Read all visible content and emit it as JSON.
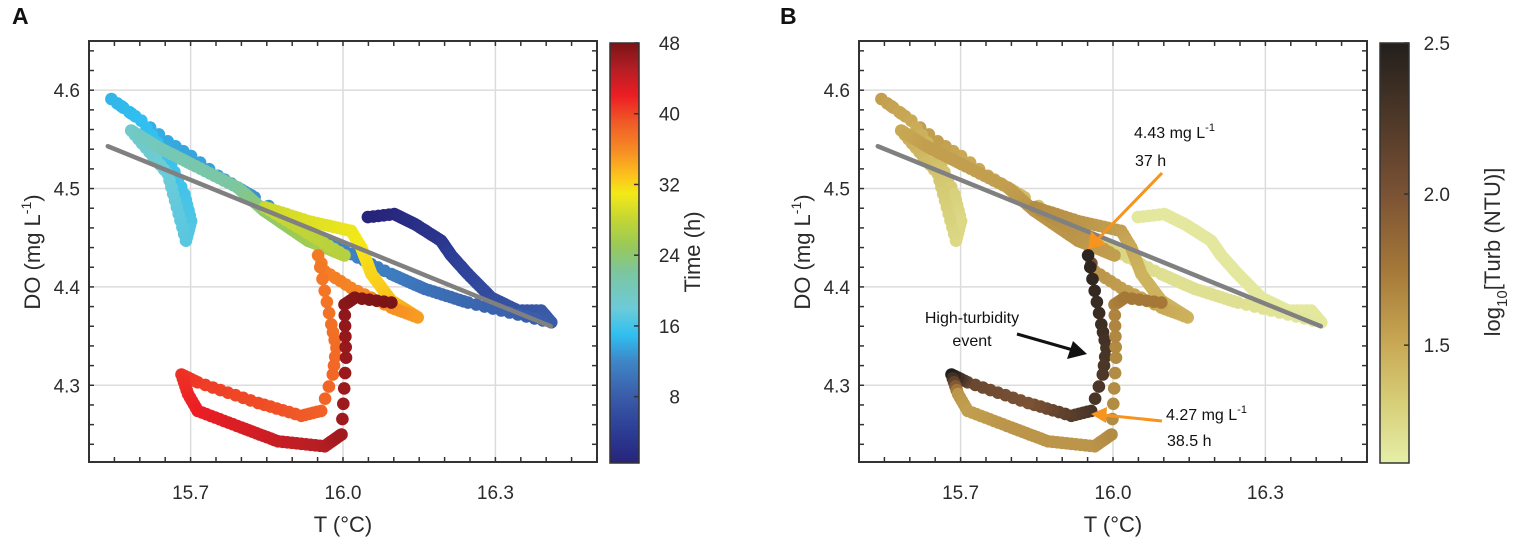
{
  "chart_data": [
    {
      "type": "scatter",
      "title": "A",
      "xlabel": "T (°C)",
      "ylabel": {
        "main": "DO (mg L",
        "sup": "-1",
        "close": ")"
      },
      "xlim": [
        15.5,
        16.5
      ],
      "ylim": [
        4.222,
        4.65
      ],
      "xticks": [
        15.7,
        16.0,
        16.3
      ],
      "yticks": [
        4.3,
        4.4,
        4.5,
        4.6
      ],
      "grid": true,
      "color_by": "time_h",
      "colorbar": {
        "label": "Time (h)",
        "range": [
          0.5,
          48
        ],
        "ticks": [
          8,
          16,
          24,
          32,
          40,
          48
        ],
        "tick_labels": [
          "8",
          "16",
          "24",
          "32",
          "40",
          "48"
        ],
        "colormap": [
          [
            0.5,
            "#27247a"
          ],
          [
            4,
            "#2c3c94"
          ],
          [
            8,
            "#3a5ca8"
          ],
          [
            12,
            "#3e86c7"
          ],
          [
            15,
            "#30bff0"
          ],
          [
            18,
            "#6ccbd8"
          ],
          [
            22,
            "#7cc6a0"
          ],
          [
            25,
            "#98c95a"
          ],
          [
            28,
            "#c3d534"
          ],
          [
            31,
            "#f4e918"
          ],
          [
            33,
            "#fcc21d"
          ],
          [
            36,
            "#f58a24"
          ],
          [
            39,
            "#f05a27"
          ],
          [
            42,
            "#ec1e24"
          ],
          [
            45,
            "#b51e24"
          ],
          [
            48,
            "#7a1416"
          ]
        ]
      },
      "regression_line": [
        [
          15.537,
          4.543
        ],
        [
          16.409,
          4.36
        ]
      ],
      "regression_color": "#808080"
    },
    {
      "type": "scatter",
      "title": "B",
      "xlabel": "T (°C)",
      "ylabel": {
        "main": "DO (mg L",
        "sup": "-1",
        "close": ")"
      },
      "xlim": [
        15.5,
        16.5
      ],
      "ylim": [
        4.222,
        4.65
      ],
      "xticks": [
        15.7,
        16.0,
        16.3
      ],
      "yticks": [
        4.3,
        4.4,
        4.5,
        4.6
      ],
      "grid": true,
      "color_by": "log10_turb",
      "colorbar": {
        "label": {
          "pre": "log",
          "sub": "10",
          "post": "[Turb (NTU)]"
        },
        "range": [
          1.11,
          2.5
        ],
        "ticks": [
          1.5,
          2.0,
          2.5
        ],
        "tick_labels": [
          "1.5",
          "2.0",
          "2.5"
        ],
        "colormap": [
          [
            1.11,
            "#e6eea8"
          ],
          [
            1.3,
            "#d8d07a"
          ],
          [
            1.5,
            "#c9a955"
          ],
          [
            1.75,
            "#a57838"
          ],
          [
            2.0,
            "#7b5234"
          ],
          [
            2.25,
            "#4e3828"
          ],
          [
            2.5,
            "#231f1c"
          ]
        ]
      },
      "regression_line": [
        [
          15.537,
          4.543
        ],
        [
          16.409,
          4.36
        ]
      ],
      "regression_color": "#808080",
      "annotations": {
        "max_value": "4.43 mg L",
        "max_sup": "-1",
        "max_time": "37 h",
        "event_line1": "High-turbidity",
        "event_line2": "event",
        "min_value": "4.27 mg L",
        "min_sup": "-1",
        "min_time": "38.5 h",
        "arrow_color": "#f7941d"
      }
    }
  ],
  "trajectory": {
    "columns": [
      "T",
      "DO",
      "time_h",
      "log10_turb"
    ],
    "sampling_interval_h": 0.1,
    "waypoints": [
      [
        16.049,
        4.471,
        0.5,
        1.15
      ],
      [
        16.101,
        4.474,
        1,
        1.15
      ],
      [
        16.141,
        4.464,
        2,
        1.15
      ],
      [
        16.193,
        4.447,
        3,
        1.15
      ],
      [
        16.213,
        4.432,
        4,
        1.15
      ],
      [
        16.246,
        4.413,
        5,
        1.15
      ],
      [
        16.292,
        4.389,
        6,
        1.15
      ],
      [
        16.344,
        4.376,
        7,
        1.15
      ],
      [
        16.39,
        4.376,
        7.5,
        1.15
      ],
      [
        16.41,
        4.364,
        8,
        1.15
      ],
      [
        16.246,
        4.384,
        9,
        1.2
      ],
      [
        16.161,
        4.398,
        10,
        1.2
      ],
      [
        16.095,
        4.413,
        11,
        1.2
      ],
      [
        16.029,
        4.43,
        11.5,
        1.25
      ],
      [
        15.964,
        4.447,
        12,
        1.3
      ],
      [
        15.826,
        4.491,
        12.5,
        1.4
      ],
      [
        15.793,
        4.501,
        13,
        1.45
      ],
      [
        15.754,
        4.513,
        13.3,
        1.5
      ],
      [
        15.701,
        4.533,
        13.6,
        1.5
      ],
      [
        15.655,
        4.548,
        13.9,
        1.55
      ],
      [
        15.603,
        4.569,
        14.2,
        1.55
      ],
      [
        15.544,
        4.591,
        14.5,
        1.55
      ],
      [
        15.603,
        4.569,
        15,
        1.5
      ],
      [
        15.655,
        4.532,
        15.5,
        1.4
      ],
      [
        15.688,
        4.494,
        16,
        1.3
      ],
      [
        15.701,
        4.467,
        16.5,
        1.25
      ],
      [
        15.691,
        4.447,
        17,
        1.25
      ],
      [
        15.655,
        4.515,
        18,
        1.35
      ],
      [
        15.583,
        4.559,
        19,
        1.5
      ],
      [
        15.636,
        4.542,
        20,
        1.55
      ],
      [
        15.701,
        4.525,
        21,
        1.55
      ],
      [
        15.793,
        4.501,
        22,
        1.55
      ],
      [
        15.846,
        4.477,
        24,
        1.6
      ],
      [
        15.931,
        4.447,
        25.5,
        1.6
      ],
      [
        16.003,
        4.432,
        27,
        1.55
      ],
      [
        15.846,
        4.481,
        28.5,
        1.65
      ],
      [
        15.931,
        4.467,
        29.5,
        1.6
      ],
      [
        16.016,
        4.457,
        30.5,
        1.55
      ],
      [
        16.036,
        4.44,
        31,
        1.5
      ],
      [
        16.056,
        4.413,
        32,
        1.45
      ],
      [
        16.095,
        4.386,
        33,
        1.45
      ],
      [
        16.147,
        4.369,
        35,
        1.45
      ],
      [
        16.095,
        4.379,
        35.7,
        1.5
      ],
      [
        16.016,
        4.399,
        36.3,
        1.55
      ],
      [
        15.964,
        4.416,
        36.8,
        1.6
      ],
      [
        15.951,
        4.432,
        37,
        2.45
      ],
      [
        15.964,
        4.396,
        37.3,
        2.4
      ],
      [
        15.977,
        4.362,
        37.6,
        2.35
      ],
      [
        15.987,
        4.338,
        37.9,
        2.3
      ],
      [
        15.98,
        4.311,
        38.2,
        2.25
      ],
      [
        15.957,
        4.274,
        38.5,
        2.3
      ],
      [
        15.918,
        4.269,
        39,
        2.2
      ],
      [
        15.833,
        4.282,
        39.7,
        2.0
      ],
      [
        15.714,
        4.303,
        40.5,
        2.1
      ],
      [
        15.682,
        4.311,
        41,
        2.5
      ],
      [
        15.695,
        4.291,
        41.5,
        1.6
      ],
      [
        15.714,
        4.274,
        42,
        1.55
      ],
      [
        15.8,
        4.257,
        43,
        1.6
      ],
      [
        15.872,
        4.243,
        44,
        1.6
      ],
      [
        15.964,
        4.238,
        45,
        1.6
      ],
      [
        15.997,
        4.25,
        46,
        1.65
      ],
      [
        16.006,
        4.328,
        46.5,
        1.65
      ],
      [
        16.003,
        4.382,
        47,
        1.7
      ],
      [
        16.023,
        4.389,
        47.5,
        1.75
      ],
      [
        16.095,
        4.384,
        48,
        1.75
      ]
    ]
  }
}
